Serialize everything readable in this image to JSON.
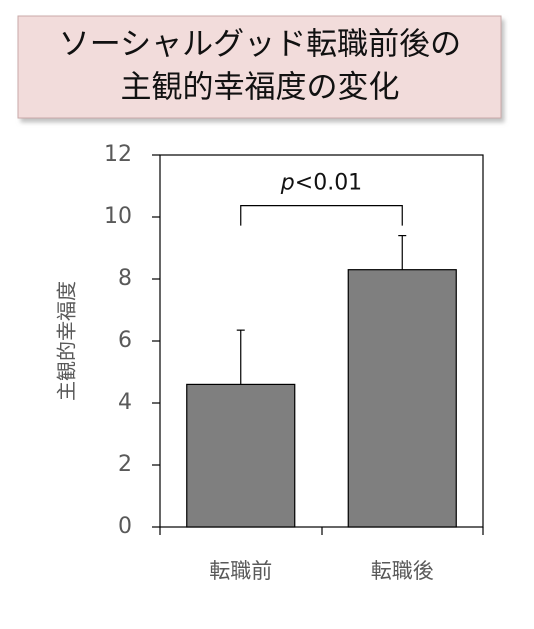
{
  "chart_data": {
    "type": "bar",
    "title": [
      "ソーシャルグッド転職前後の",
      "主観的幸福度の変化"
    ],
    "y_label": "主観的幸福度",
    "categories": [
      "転職前",
      "転職後"
    ],
    "values": [
      4.6,
      8.3
    ],
    "errors": [
      1.75,
      1.1
    ],
    "color": "#7f7f7f",
    "ylim": [
      0,
      12
    ],
    "yticks": [
      0,
      2,
      4,
      6,
      8,
      10,
      12
    ],
    "annotation": [
      "p",
      "<0.01"
    ]
  }
}
